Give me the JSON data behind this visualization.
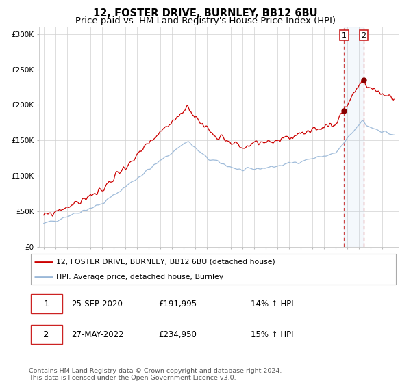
{
  "title": "12, FOSTER DRIVE, BURNLEY, BB12 6BU",
  "subtitle": "Price paid vs. HM Land Registry's House Price Index (HPI)",
  "ylim": [
    0,
    310000
  ],
  "yticks": [
    0,
    50000,
    100000,
    150000,
    200000,
    250000,
    300000
  ],
  "ytick_labels": [
    "£0",
    "£50K",
    "£100K",
    "£150K",
    "£200K",
    "£250K",
    "£300K"
  ],
  "line1_color": "#cc0000",
  "line2_color": "#9ab8d8",
  "marker_color": "#880000",
  "point1_year": 2020.73,
  "point1_value": 191995,
  "point2_year": 2022.4,
  "point2_value": 234950,
  "legend1_label": "12, FOSTER DRIVE, BURNLEY, BB12 6BU (detached house)",
  "legend2_label": "HPI: Average price, detached house, Burnley",
  "table_row1": [
    "1",
    "25-SEP-2020",
    "£191,995",
    "14% ↑ HPI"
  ],
  "table_row2": [
    "2",
    "27-MAY-2022",
    "£234,950",
    "15% ↑ HPI"
  ],
  "footer": "Contains HM Land Registry data © Crown copyright and database right 2024.\nThis data is licensed under the Open Government Licence v3.0.",
  "title_fontsize": 10.5,
  "subtitle_fontsize": 9.5,
  "tick_fontsize": 7.5
}
